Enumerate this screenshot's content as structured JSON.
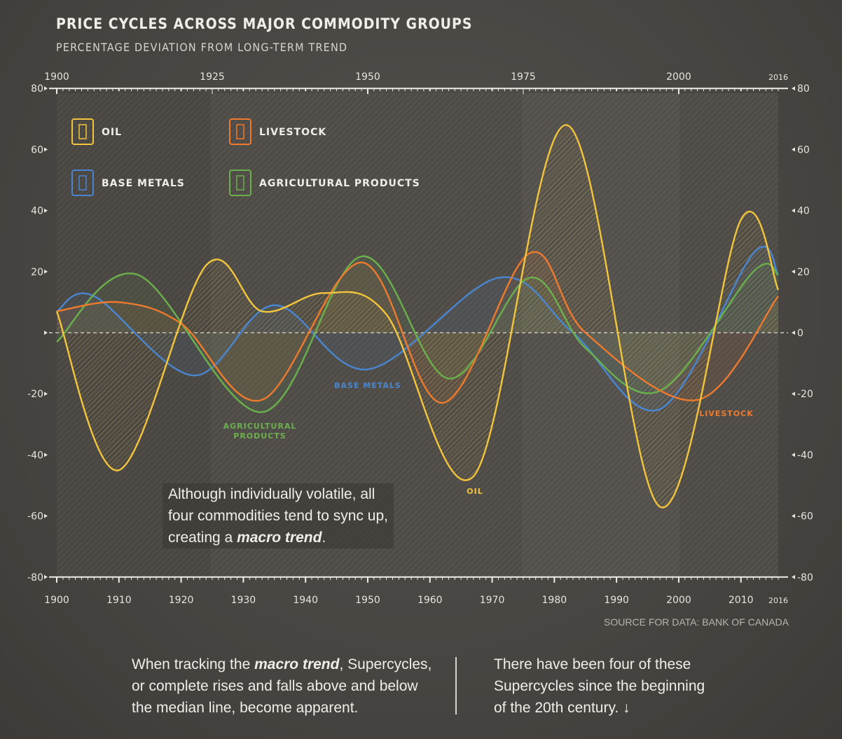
{
  "header": {
    "title": "PRICE CYCLES ACROSS MAJOR COMMODITY GROUPS",
    "subtitle": "PERCENTAGE DEVIATION FROM LONG-TERM TREND"
  },
  "chart_data": {
    "type": "line",
    "title": "PRICE CYCLES ACROSS MAJOR COMMODITY GROUPS",
    "subtitle": "PERCENTAGE DEVIATION FROM LONG-TERM TREND",
    "xlim": [
      1900,
      2016
    ],
    "ylim": [
      -80,
      80
    ],
    "x_ticks_top": [
      1900,
      1925,
      1950,
      1975,
      2000,
      2016
    ],
    "x_ticks_bottom": [
      1900,
      1910,
      1920,
      1930,
      1940,
      1950,
      1960,
      1970,
      1980,
      1990,
      2000,
      2010,
      2016
    ],
    "y_ticks": [
      80,
      60,
      40,
      20,
      0,
      -20,
      -40,
      -60,
      -80
    ],
    "legend": [
      "OIL",
      "LIVESTOCK",
      "BASE METALS",
      "AGRICULTURAL PRODUCTS"
    ],
    "series": [
      {
        "name": "OIL",
        "color": "#f2c53d",
        "label": "OIL",
        "points": [
          [
            1900,
            7
          ],
          [
            1910,
            -45
          ],
          [
            1924,
            22
          ],
          [
            1933,
            7
          ],
          [
            1943,
            13
          ],
          [
            1953,
            6
          ],
          [
            1967,
            -47
          ],
          [
            1982,
            68
          ],
          [
            1997,
            -57
          ],
          [
            2010,
            37
          ],
          [
            2016,
            14
          ]
        ]
      },
      {
        "name": "LIVESTOCK",
        "color": "#ee7a2e",
        "label": "LIVESTOCK",
        "points": [
          [
            1900,
            7
          ],
          [
            1910,
            10
          ],
          [
            1920,
            3
          ],
          [
            1933,
            -22
          ],
          [
            1949,
            23
          ],
          [
            1962,
            -23
          ],
          [
            1976,
            26
          ],
          [
            1985,
            0
          ],
          [
            2003,
            -22
          ],
          [
            2016,
            12
          ]
        ]
      },
      {
        "name": "BASE METALS",
        "color": "#4a86d0",
        "label": "BASE METALS",
        "points": [
          [
            1900,
            7
          ],
          [
            1906,
            12
          ],
          [
            1922,
            -14
          ],
          [
            1935,
            9
          ],
          [
            1950,
            -12
          ],
          [
            1971,
            18
          ],
          [
            1983,
            0
          ],
          [
            1997,
            -25
          ],
          [
            2012,
            26
          ],
          [
            2016,
            19
          ]
        ]
      },
      {
        "name": "AGRICULTURAL PRODUCTS",
        "color": "#6ab04c",
        "label": "AGRICULTURAL PRODUCTS",
        "points": [
          [
            1900,
            -3
          ],
          [
            1913,
            19
          ],
          [
            1933,
            -26
          ],
          [
            1949,
            25
          ],
          [
            1963,
            -15
          ],
          [
            1976,
            18
          ],
          [
            1985,
            -5
          ],
          [
            1997,
            -19
          ],
          [
            2012,
            20
          ],
          [
            2016,
            19
          ]
        ]
      }
    ],
    "annotations": [
      "BASE METALS",
      "AGRICULTURAL",
      "PRODUCTS",
      "OIL",
      "LIVESTOCK"
    ],
    "grid": false,
    "legend_placement": "top-left"
  },
  "callout": {
    "line1": "Although individually volatile, all",
    "line2": "four commodities tend to sync up,",
    "line3_pre": "creating a ",
    "line3_em": "macro trend",
    "line3_post": "."
  },
  "source": "SOURCE FOR DATA: BANK OF CANADA",
  "footer": {
    "left_pre": "When tracking the ",
    "left_em": "macro trend",
    "left_post": ", Supercycles,",
    "left_2": "or complete rises and falls above and below",
    "left_3": "the median line, become apparent.",
    "right_1": "There have been four of these",
    "right_2": "Supercycles since the beginning",
    "right_3": "of the 20th century. ↓"
  }
}
